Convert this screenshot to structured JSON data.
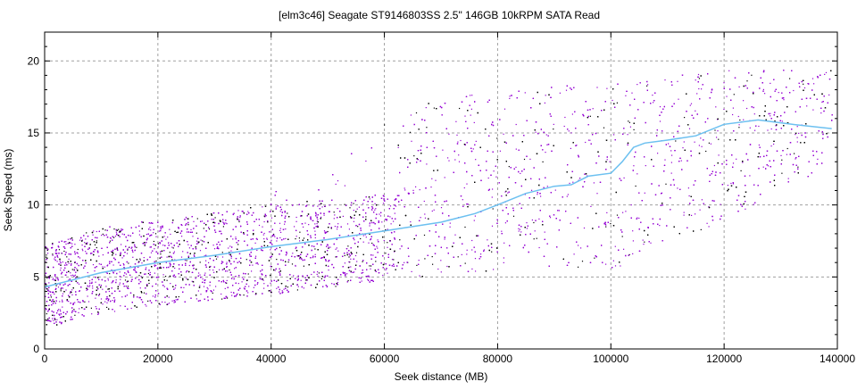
{
  "chart_data": {
    "type": "scatter",
    "title": "[elm3c46] Seagate ST9146803SS 2.5\" 146GB 10kRPM SATA Read",
    "xlabel": "Seek distance (MB)",
    "ylabel": "Seek Speed (ms)",
    "xlim": [
      0,
      140000
    ],
    "ylim": [
      0,
      22
    ],
    "xticks": [
      0,
      20000,
      40000,
      60000,
      80000,
      100000,
      120000,
      140000
    ],
    "yticks": [
      0,
      5,
      10,
      15,
      20
    ],
    "grid": true,
    "legend": "none",
    "colors": {
      "scatter_primary": "#9400d3",
      "scatter_secondary": "#000000",
      "trend": "#6cc0f0",
      "grid": "#a0a0a0"
    },
    "scatter_envelope": {
      "x": [
        0,
        10000,
        20000,
        30000,
        40000,
        50000,
        60000,
        65000,
        80000,
        100000,
        120000,
        140000
      ],
      "lower": [
        1.5,
        2.5,
        3.0,
        3.4,
        3.8,
        4.3,
        4.8,
        5.0,
        5.5,
        5.5,
        9.0,
        13.0
      ],
      "dense_upper": [
        7.2,
        8.5,
        9.0,
        9.5,
        10.0,
        10.4,
        10.8,
        11.0,
        11.0,
        11.0,
        11.0,
        11.0
      ],
      "sparse_upper": [
        7.2,
        8.5,
        9.0,
        9.8,
        11.0,
        13.0,
        16.5,
        17.0,
        18.0,
        18.5,
        19.5,
        19.5
      ]
    },
    "trend": {
      "x": [
        0,
        10000,
        20000,
        30000,
        40000,
        50000,
        60000,
        70000,
        76000,
        80000,
        85000,
        90000,
        93000,
        96000,
        100000,
        102000,
        104000,
        106000,
        110000,
        115000,
        120000,
        126000,
        132000,
        139000
      ],
      "y": [
        4.3,
        5.3,
        6.0,
        6.5,
        7.1,
        7.6,
        8.2,
        8.8,
        9.4,
        10.0,
        10.8,
        11.3,
        11.4,
        12.0,
        12.2,
        13.0,
        14.0,
        14.3,
        14.5,
        14.8,
        15.6,
        15.9,
        15.6,
        15.3
      ]
    }
  }
}
